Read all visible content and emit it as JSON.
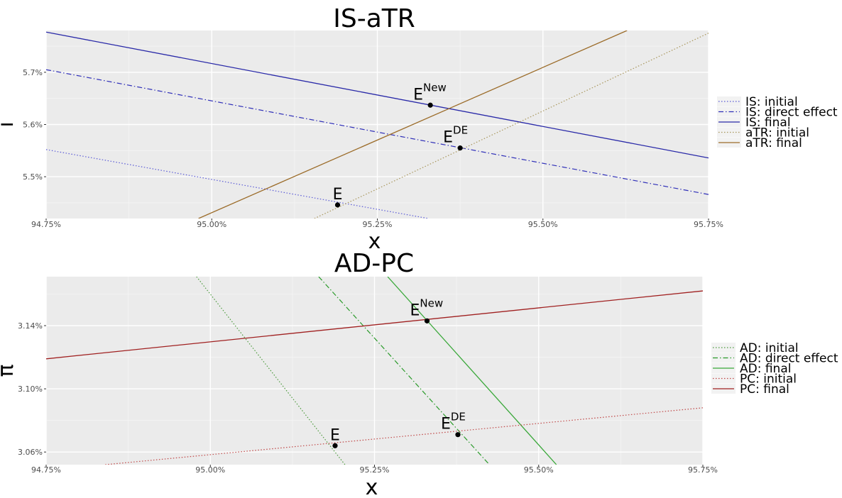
{
  "chart_data": [
    {
      "type": "line",
      "title": "IS-aTR",
      "xlabel": "x",
      "ylabel": "i",
      "xlim": [
        94.75,
        95.75
      ],
      "ylim": [
        5.42,
        5.78
      ],
      "x_ticks": [
        {
          "value": 94.75,
          "label": "94.75%"
        },
        {
          "value": 95.0,
          "label": "95.00%"
        },
        {
          "value": 95.25,
          "label": "95.25%"
        },
        {
          "value": 95.5,
          "label": "95.50%"
        },
        {
          "value": 95.75,
          "label": "95.75%"
        }
      ],
      "y_ticks": [
        {
          "value": 5.5,
          "label": "5.5%"
        },
        {
          "value": 5.6,
          "label": "5.6%"
        },
        {
          "value": 5.7,
          "label": "5.7%"
        }
      ],
      "grid": true,
      "legend_position": "right",
      "series": [
        {
          "name": "IS: initial",
          "color": "#5a5ad6",
          "dash": "dotted",
          "points": [
            [
              94.75,
              5.552
            ],
            [
              95.327,
              5.42
            ]
          ]
        },
        {
          "name": "IS: direct effect",
          "color": "#2f2fb8",
          "dash": "dotdash",
          "points": [
            [
              94.75,
              5.705
            ],
            [
              95.75,
              5.466
            ]
          ]
        },
        {
          "name": "IS: final",
          "color": "#2929a8",
          "dash": "solid",
          "points": [
            [
              94.75,
              5.777
            ],
            [
              95.75,
              5.536
            ]
          ]
        },
        {
          "name": "aTR: initial",
          "color": "#a7955a",
          "dash": "dotted",
          "points": [
            [
              95.155,
              5.42
            ],
            [
              95.75,
              5.775
            ]
          ]
        },
        {
          "name": "aTR: final",
          "color": "#9b6b28",
          "dash": "solid",
          "points": [
            [
              94.98,
              5.42
            ],
            [
              95.627,
              5.78
            ]
          ]
        }
      ],
      "points": [
        {
          "label": "E",
          "sup": "",
          "x": 95.19,
          "y": 5.446
        },
        {
          "label": "E",
          "sup": "DE",
          "x": 95.375,
          "y": 5.555
        },
        {
          "label": "E",
          "sup": "New",
          "x": 95.33,
          "y": 5.637
        }
      ]
    },
    {
      "type": "line",
      "title": "AD-PC",
      "xlabel": "x",
      "ylabel": "π",
      "xlim": [
        94.75,
        95.75
      ],
      "ylim": [
        3.052,
        3.171
      ],
      "x_ticks": [
        {
          "value": 94.75,
          "label": "94.75%"
        },
        {
          "value": 95.0,
          "label": "95.00%"
        },
        {
          "value": 95.25,
          "label": "95.25%"
        },
        {
          "value": 95.5,
          "label": "95.50%"
        },
        {
          "value": 95.75,
          "label": "95.75%"
        }
      ],
      "y_ticks": [
        {
          "value": 3.06,
          "label": "3.06%"
        },
        {
          "value": 3.1,
          "label": "3.10%"
        },
        {
          "value": 3.14,
          "label": "3.14%"
        }
      ],
      "grid": true,
      "legend_position": "right",
      "series": [
        {
          "name": "AD: initial",
          "color": "#4c9a3c",
          "dash": "dotted",
          "points": [
            [
              94.979,
              3.171
            ],
            [
              95.205,
              3.052
            ]
          ]
        },
        {
          "name": "AD: direct effect",
          "color": "#2a9a2a",
          "dash": "dotdash",
          "points": [
            [
              95.165,
              3.171
            ],
            [
              95.425,
              3.052
            ]
          ]
        },
        {
          "name": "AD: final",
          "color": "#3aa83a",
          "dash": "solid",
          "points": [
            [
              95.27,
              3.171
            ],
            [
              95.527,
              3.052
            ]
          ]
        },
        {
          "name": "PC: initial",
          "color": "#c04848",
          "dash": "dotted",
          "points": [
            [
              94.84,
              3.052
            ],
            [
              95.75,
              3.088
            ]
          ]
        },
        {
          "name": "PC: final",
          "color": "#a02020",
          "dash": "solid",
          "points": [
            [
              94.75,
              3.119
            ],
            [
              95.75,
              3.162
            ]
          ]
        }
      ],
      "points": [
        {
          "label": "E",
          "sup": "",
          "x": 95.19,
          "y": 3.064
        },
        {
          "label": "E",
          "sup": "DE",
          "x": 95.377,
          "y": 3.071
        },
        {
          "label": "E",
          "sup": "New",
          "x": 95.33,
          "y": 3.143
        }
      ]
    }
  ]
}
